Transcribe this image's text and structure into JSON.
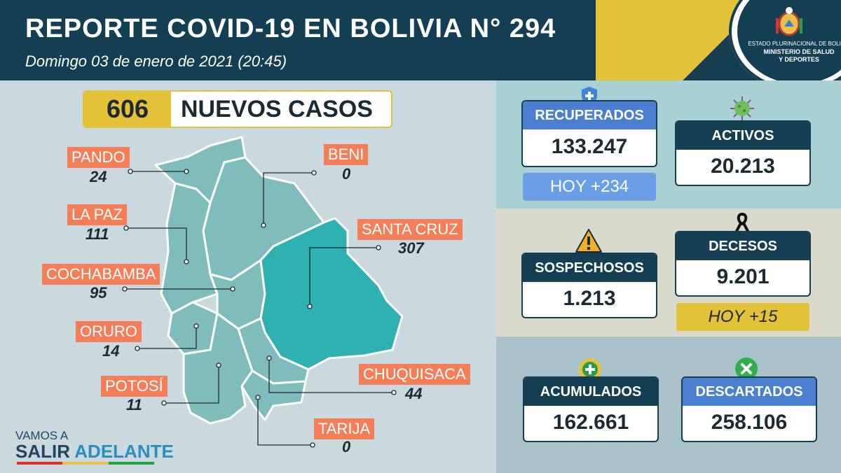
{
  "header": {
    "title": "REPORTE COVID-19 EN BOLIVIA N° 294",
    "subtitle": "Domingo 03 de enero de 2021 (20:45)",
    "ministry_top": "ESTADO PLURINACIONAL DE BOLIVIA",
    "ministry_name_1": "MINISTERIO DE SALUD",
    "ministry_name_2": "Y DEPORTES"
  },
  "nuevos": {
    "value": "606",
    "label": "NUEVOS CASOS"
  },
  "departments": {
    "pando": {
      "name": "PANDO",
      "value": "24"
    },
    "beni": {
      "name": "BENI",
      "value": "0"
    },
    "la_paz": {
      "name": "LA PAZ",
      "value": "111"
    },
    "santa_cruz": {
      "name": "SANTA CRUZ",
      "value": "307"
    },
    "cochabamba": {
      "name": "COCHABAMBA",
      "value": "95"
    },
    "oruro": {
      "name": "ORURO",
      "value": "14"
    },
    "chuquisaca": {
      "name": "CHUQUISACA",
      "value": "44"
    },
    "potosi": {
      "name": "POTOSÍ",
      "value": "11"
    },
    "tarija": {
      "name": "TARIJA",
      "value": "0"
    }
  },
  "stats": {
    "recuperados": {
      "label": "RECUPERADOS",
      "value": "133.247",
      "today": "HOY +234"
    },
    "activos": {
      "label": "ACTIVOS",
      "value": "20.213"
    },
    "sospechosos": {
      "label": "SOSPECHOSOS",
      "value": "1.213"
    },
    "decesos": {
      "label": "DECESOS",
      "value": "9.201",
      "today": "HOY +15"
    },
    "acumulados": {
      "label": "ACUMULADOS",
      "value": "162.661"
    },
    "descartados": {
      "label": "DESCARTADOS",
      "value": "258.106"
    }
  },
  "footer": {
    "line1": "VAMOS A",
    "line2a": "SALIR ",
    "line2b": "ADELANTE"
  },
  "colors": {
    "header_bg": "#143f52",
    "accent_yellow": "#e3c23a",
    "dept_tag": "#f37e58",
    "santa_cruz": "#2fb0b1",
    "map_region": "#7fbdbd",
    "card_blue": "#4a7fd0",
    "card_dark": "#143f52"
  },
  "icons": [
    "shield-plus-icon",
    "virus-icon",
    "warning-icon",
    "mourning-ribbon-icon",
    "plus-circle-icon",
    "x-circle-icon",
    "coat-of-arms-icon"
  ]
}
